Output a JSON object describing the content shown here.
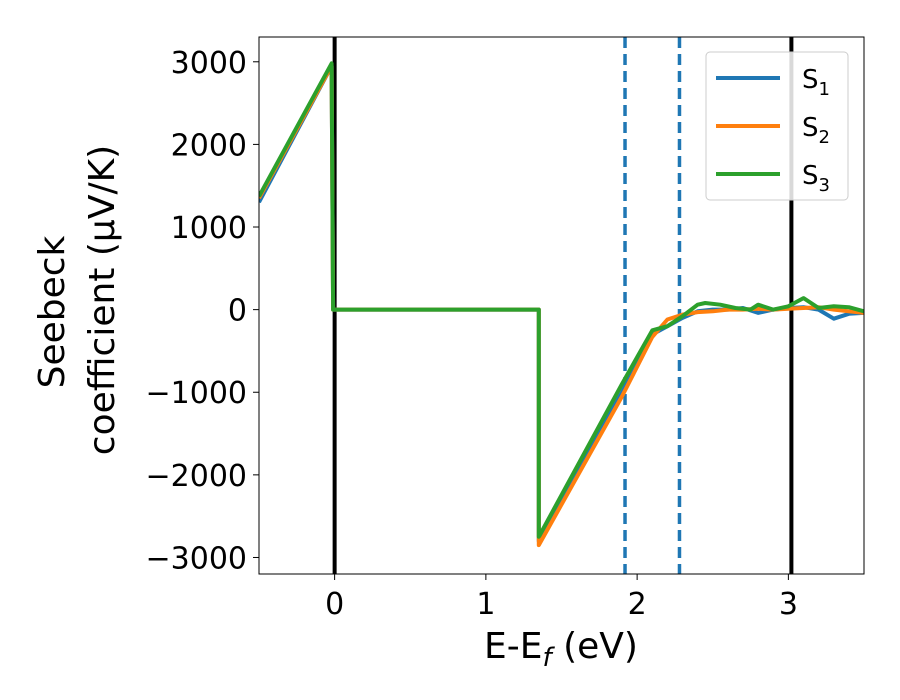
{
  "chart_data": {
    "type": "line",
    "xlabel": "E-E_f (eV)",
    "ylabel_line1": "Seebeck",
    "ylabel_line2": "coefficient  (μV/K)",
    "xlim": [
      -0.5,
      3.5
    ],
    "ylim": [
      -3200,
      3300
    ],
    "xticks": [
      0,
      1,
      2,
      3
    ],
    "yticks": [
      -3000,
      -2000,
      -1000,
      0,
      1000,
      2000,
      3000
    ],
    "legend": {
      "placement": "upper-right"
    },
    "series": [
      {
        "name": "S1",
        "color": "#1f77b4",
        "x": [
          -0.5,
          -0.02,
          -0.01,
          1.35,
          1.35,
          1.9,
          2.1,
          2.2,
          2.3,
          2.4,
          2.5,
          2.6,
          2.7,
          2.8,
          2.9,
          3.0,
          3.1,
          3.2,
          3.3,
          3.4,
          3.5
        ],
        "y": [
          1300,
          2950,
          0,
          0,
          -2800,
          -1000,
          -300,
          -200,
          -100,
          -20,
          0,
          0,
          20,
          -40,
          0,
          20,
          30,
          0,
          -110,
          -50,
          -40
        ]
      },
      {
        "name": "S2",
        "color": "#ff7f0e",
        "x": [
          -0.5,
          -0.02,
          -0.01,
          1.35,
          1.35,
          1.9,
          2.1,
          2.2,
          2.3,
          2.4,
          2.5,
          2.6,
          2.7,
          2.8,
          2.9,
          3.0,
          3.1,
          3.2,
          3.3,
          3.4,
          3.5
        ],
        "y": [
          1350,
          2950,
          0,
          0,
          -2850,
          -1050,
          -330,
          -120,
          -60,
          -30,
          -20,
          0,
          0,
          10,
          0,
          10,
          20,
          30,
          0,
          -20,
          -40
        ]
      },
      {
        "name": "S3",
        "color": "#2ca02c",
        "x": [
          -0.5,
          -0.02,
          -0.01,
          1.35,
          1.35,
          1.9,
          2.1,
          2.2,
          2.3,
          2.4,
          2.45,
          2.55,
          2.65,
          2.75,
          2.8,
          2.9,
          3.0,
          3.1,
          3.2,
          3.3,
          3.4,
          3.5
        ],
        "y": [
          1370,
          2980,
          0,
          0,
          -2750,
          -900,
          -250,
          -200,
          -80,
          60,
          80,
          60,
          20,
          0,
          60,
          0,
          40,
          140,
          20,
          40,
          30,
          -20
        ]
      }
    ],
    "vlines_solid": [
      0.0,
      3.02
    ],
    "vlines_dashed": [
      1.92,
      2.28
    ],
    "grid": false
  }
}
